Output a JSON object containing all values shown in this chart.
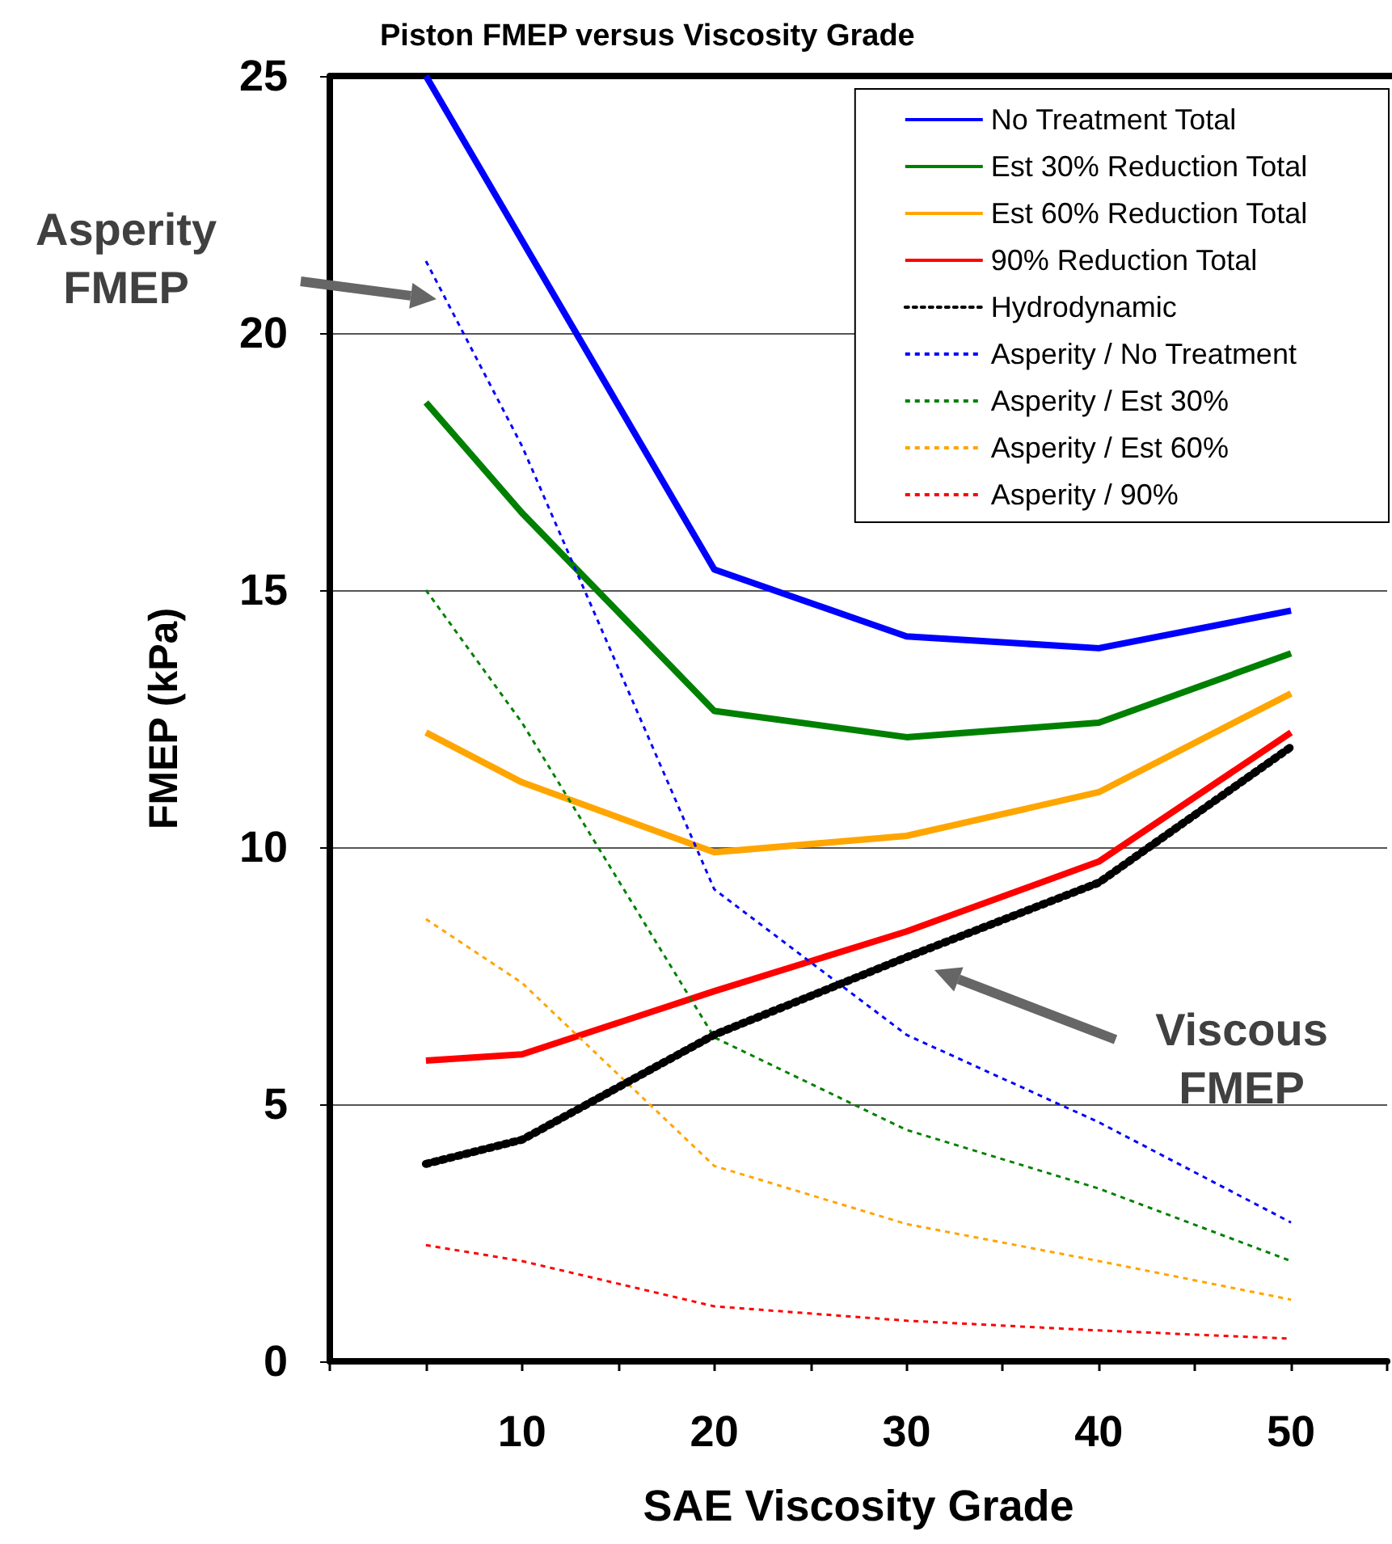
{
  "chart_data": {
    "type": "line",
    "title": "Piston FMEP versus Viscosity Grade",
    "xlabel": "SAE Viscosity Grade",
    "ylabel": "FMEP (kPa)",
    "x": [
      5,
      10,
      20,
      30,
      40,
      50
    ],
    "xlim": [
      0,
      55
    ],
    "xticks": [
      {
        "value": 0,
        "label": null
      },
      {
        "value": 5,
        "label": null
      },
      10,
      {
        "value": 15,
        "label": null
      },
      20,
      {
        "value": 25,
        "label": null
      },
      30,
      {
        "value": 35,
        "label": null
      },
      40,
      {
        "value": 45,
        "label": null
      },
      50,
      {
        "value": 55,
        "label": null
      }
    ],
    "ylim": [
      0,
      25
    ],
    "yticks": [
      0,
      5,
      10,
      15,
      20,
      25
    ],
    "grid": "y",
    "legend": "top right",
    "marker": "none",
    "series": [
      {
        "name": "No Treatment Total",
        "color": "#0000ff",
        "line_style": "solid",
        "values": [
          25,
          21.8,
          15.4,
          14.1,
          13.87,
          14.6
        ]
      },
      {
        "name": "Est 30% Reduction Total",
        "color": "#008000",
        "line_style": "solid",
        "values": [
          18.65,
          16.5,
          12.65,
          12.14,
          12.42,
          13.77
        ]
      },
      {
        "name": "Est 60% Reduction Total",
        "color": "#ffa500",
        "line_style": "solid",
        "values": [
          12.23,
          11.26,
          9.9,
          10.22,
          11.07,
          12.99
        ]
      },
      {
        "name": "90% Reduction Total",
        "color": "#ff0000",
        "line_style": "solid",
        "values": [
          5.85,
          5.97,
          7.2,
          8.36,
          9.72,
          12.23
        ]
      },
      {
        "name": "Hydrodynamic",
        "color": "#000000",
        "line_style": "dotted",
        "values": [
          3.84,
          4.31,
          6.35,
          7.86,
          9.31,
          11.95
        ]
      },
      {
        "name": "Asperity / No Treatment",
        "color": "#0000ff",
        "line_style": "dashed",
        "values": [
          21.4,
          17.8,
          9.18,
          6.35,
          4.65,
          2.7
        ]
      },
      {
        "name": "Asperity / Est 30%",
        "color": "#008000",
        "line_style": "dashed",
        "values": [
          15.0,
          12.42,
          6.3,
          4.5,
          3.36,
          1.95
        ]
      },
      {
        "name": "Asperity / Est 60%",
        "color": "#ffa500",
        "line_style": "dashed",
        "values": [
          8.6,
          7.36,
          3.8,
          2.67,
          1.95,
          1.2
        ]
      },
      {
        "name": "Asperity / 90%",
        "color": "#ff0000",
        "line_style": "dashed",
        "values": [
          2.26,
          1.95,
          1.07,
          0.79,
          0.6,
          0.44
        ]
      }
    ],
    "annotations": [
      "Asperity FMEP",
      "Viscous FMEP"
    ]
  }
}
